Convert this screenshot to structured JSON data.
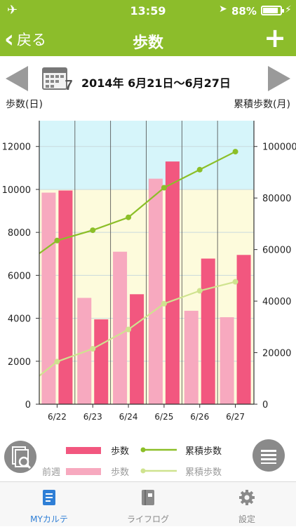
{
  "status": {
    "time": "13:59",
    "battery": "88%",
    "battery_level": 0.88
  },
  "nav": {
    "back_label": "戻る",
    "title": "歩数",
    "add_label": "+"
  },
  "week": {
    "range": "2014年 6月21日〜6月27日",
    "calendar_day": "7"
  },
  "axis_labels": {
    "left": "歩数(日)",
    "right": "累積歩数(月)"
  },
  "chart_data": {
    "type": "bar",
    "categories": [
      "6/22",
      "6/23",
      "6/24",
      "6/25",
      "6/26",
      "6/27"
    ],
    "left_axis": {
      "ticks": [
        "0",
        "2000",
        "4000",
        "6000",
        "8000",
        "10000",
        "12000"
      ],
      "ylim": [
        0,
        13200
      ]
    },
    "right_axis": {
      "ticks": [
        "0",
        "20000",
        "40000",
        "60000",
        "80000",
        "100000"
      ],
      "ylim": [
        0,
        110000
      ]
    },
    "zones": [
      {
        "from": 10000,
        "to": 13200,
        "color": "#d6f5fa"
      },
      {
        "from": 0,
        "to": 10000,
        "color": "#fdfbdc"
      }
    ],
    "bars": [
      {
        "name": "前週 歩数",
        "color": "#f7a9bf",
        "values": [
          9850,
          4950,
          7100,
          10500,
          4350,
          4050
        ]
      },
      {
        "name": "歩数",
        "color": "#f2577f",
        "values": [
          9950,
          3950,
          5120,
          11300,
          6780,
          6950
        ]
      }
    ],
    "lines": [
      {
        "name": "累積歩数",
        "color": "#8cbf28",
        "values": [
          63500,
          67500,
          72500,
          84000,
          91000,
          98000
        ]
      },
      {
        "name": "前週 累積歩数",
        "color": "#cfe38f",
        "values": [
          16500,
          21500,
          29000,
          39000,
          44000,
          47500
        ]
      }
    ],
    "line_starts": [
      58500,
      11000
    ]
  },
  "legend": {
    "current": {
      "bar_label": "歩数",
      "line_label": "累積歩数"
    },
    "previous": {
      "prefix": "前週",
      "bar_label": "歩数",
      "line_label": "累積歩数"
    }
  },
  "tabs": [
    {
      "label": "MYカルテ",
      "icon": "notebook-icon",
      "active": true
    },
    {
      "label": "ライフログ",
      "icon": "book-icon",
      "active": false
    },
    {
      "label": "設定",
      "icon": "gear-icon",
      "active": false
    }
  ]
}
